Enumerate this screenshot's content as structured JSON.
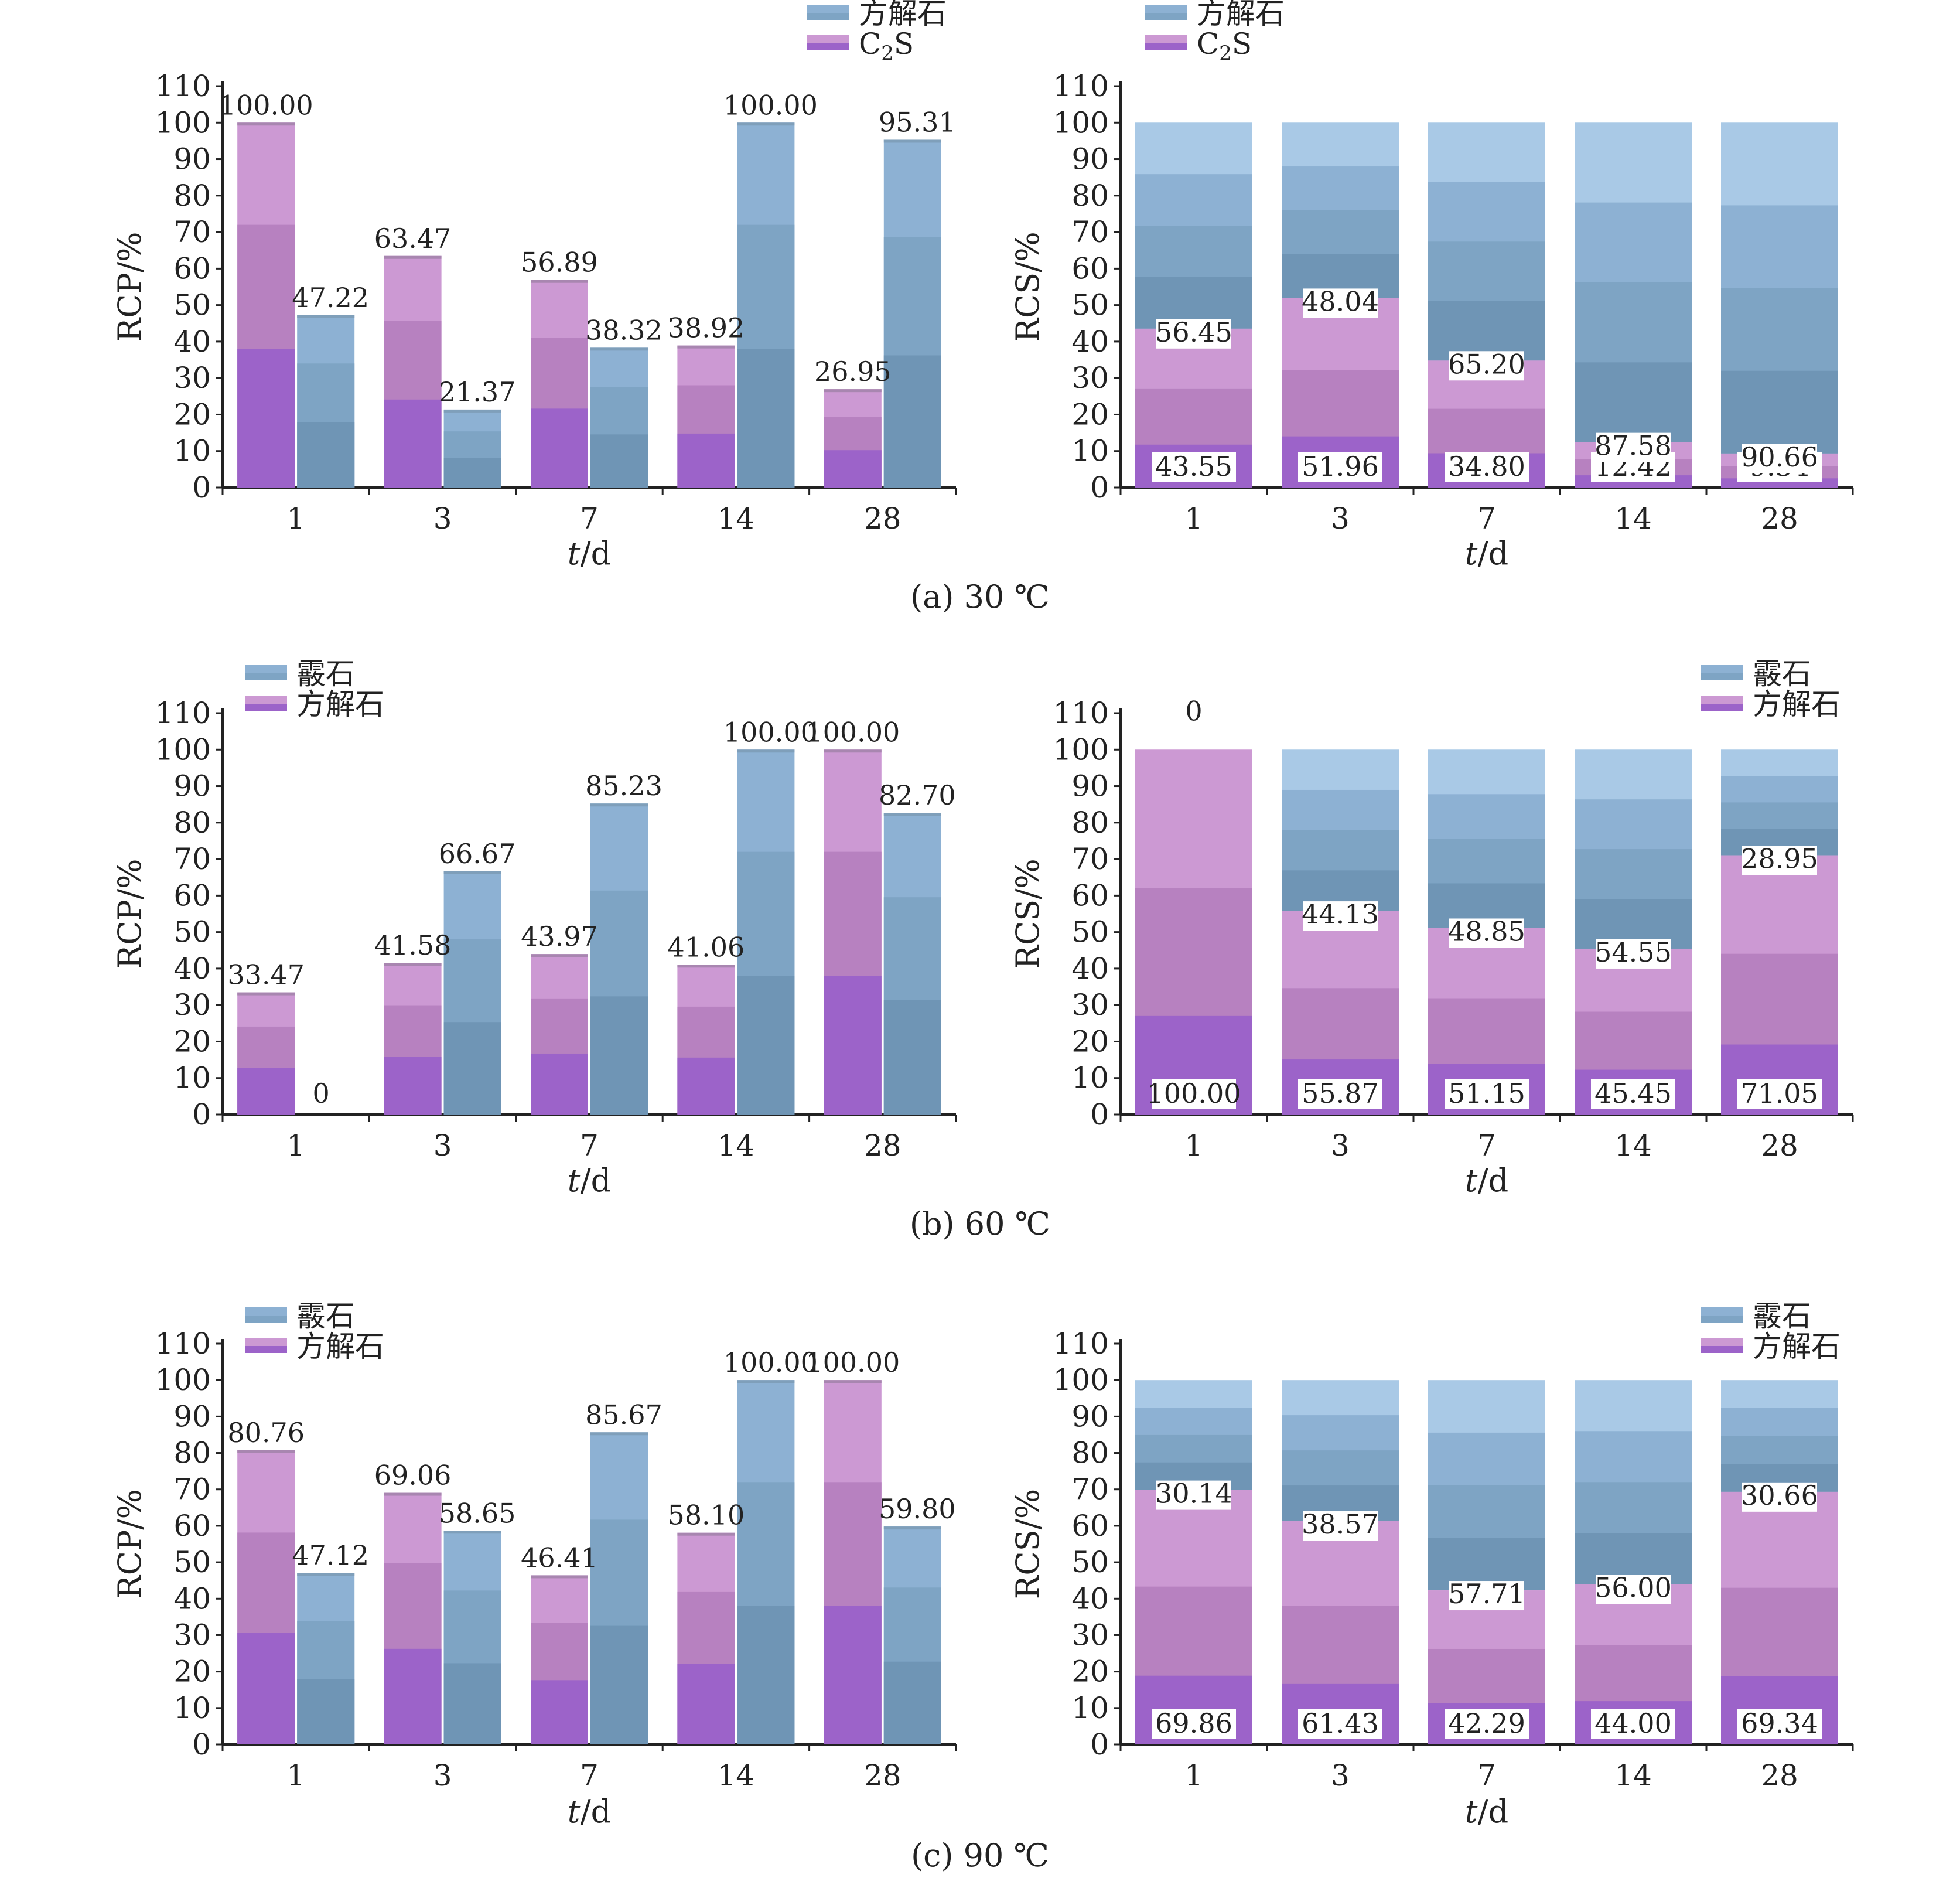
{
  "colors": {
    "blue_light": "#a9c9e6",
    "blue": "#8db1d3",
    "blue_mid": "#7ea4c4",
    "blue_dark": "#6f95b5",
    "purple_light": "#cc99d3",
    "purple": "#b781c0",
    "purple_dark": "#9c63c9"
  },
  "chart_data": [
    {
      "id": "a-left",
      "type": "bar",
      "panel": "(a) 30 ℃",
      "ylabel": "RCP/%",
      "xlabel": "t/d",
      "ylim": [
        0,
        110
      ],
      "categories": [
        "1",
        "3",
        "7",
        "14",
        "28"
      ],
      "legend": [
        "方解石",
        "C₂S"
      ],
      "series": [
        {
          "name": "C₂S",
          "values": [
            100.0,
            63.47,
            56.89,
            38.92,
            26.95
          ]
        },
        {
          "name": "方解石",
          "values": [
            47.22,
            21.37,
            38.32,
            100.0,
            95.31
          ]
        }
      ]
    },
    {
      "id": "a-right",
      "type": "bar",
      "panel": "(a) 30 ℃",
      "ylabel": "RCS/%",
      "xlabel": "t/d",
      "ylim": [
        0,
        110
      ],
      "categories": [
        "1",
        "3",
        "7",
        "14",
        "28"
      ],
      "legend": [
        "方解石",
        "C₂S"
      ],
      "series": [
        {
          "name": "C₂S",
          "values": [
            43.55,
            51.96,
            34.8,
            12.42,
            9.34
          ]
        },
        {
          "name": "方解石",
          "values": [
            56.45,
            48.04,
            65.2,
            87.58,
            90.66
          ]
        }
      ]
    },
    {
      "id": "b-left",
      "type": "bar",
      "panel": "(b) 60 ℃",
      "ylabel": "RCP/%",
      "xlabel": "t/d",
      "ylim": [
        0,
        110
      ],
      "categories": [
        "1",
        "3",
        "7",
        "14",
        "28"
      ],
      "legend": [
        "霰石",
        "方解石"
      ],
      "series": [
        {
          "name": "方解石",
          "values": [
            33.47,
            41.58,
            43.97,
            41.06,
            100.0
          ]
        },
        {
          "name": "霰石",
          "values": [
            0,
            66.67,
            85.23,
            100.0,
            82.7
          ]
        }
      ]
    },
    {
      "id": "b-right",
      "type": "bar",
      "panel": "(b) 60 ℃",
      "ylabel": "RCS/%",
      "xlabel": "t/d",
      "ylim": [
        0,
        110
      ],
      "categories": [
        "1",
        "3",
        "7",
        "14",
        "28"
      ],
      "legend": [
        "霰石",
        "方解石"
      ],
      "series": [
        {
          "name": "方解石",
          "values": [
            100.0,
            55.87,
            51.15,
            45.45,
            71.05
          ]
        },
        {
          "name": "霰石",
          "values": [
            0,
            44.13,
            48.85,
            54.55,
            28.95
          ]
        }
      ]
    },
    {
      "id": "c-left",
      "type": "bar",
      "panel": "(c) 90 ℃",
      "ylabel": "RCP/%",
      "xlabel": "t/d",
      "ylim": [
        0,
        110
      ],
      "categories": [
        "1",
        "3",
        "7",
        "14",
        "28"
      ],
      "legend": [
        "霰石",
        "方解石"
      ],
      "series": [
        {
          "name": "方解石",
          "values": [
            80.76,
            69.06,
            46.41,
            58.1,
            100.0
          ]
        },
        {
          "name": "霰石",
          "values": [
            47.12,
            58.65,
            85.67,
            100.0,
            59.8
          ]
        }
      ]
    },
    {
      "id": "c-right",
      "type": "bar",
      "panel": "(c) 90 ℃",
      "ylabel": "RCS/%",
      "xlabel": "t/d",
      "ylim": [
        0,
        110
      ],
      "categories": [
        "1",
        "3",
        "7",
        "14",
        "28"
      ],
      "legend": [
        "霰石",
        "方解石"
      ],
      "series": [
        {
          "name": "方解石",
          "values": [
            69.86,
            61.43,
            42.29,
            44.0,
            69.34
          ]
        },
        {
          "name": "霰石",
          "values": [
            30.14,
            38.57,
            57.71,
            56.0,
            30.66
          ]
        }
      ]
    }
  ],
  "captions": [
    "(a) 30 ℃",
    "(b) 60 ℃",
    "(c) 90 ℃"
  ]
}
